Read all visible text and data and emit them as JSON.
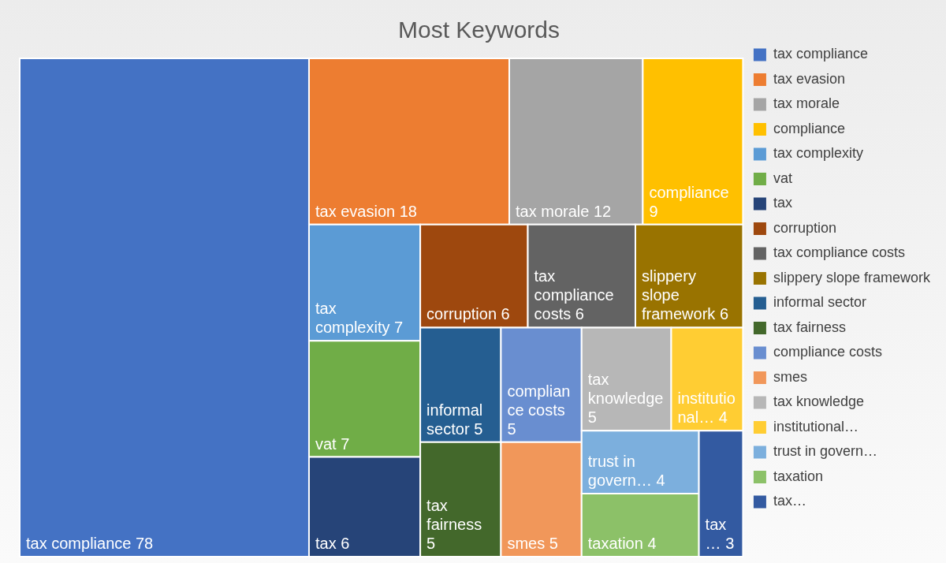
{
  "chart_data": {
    "type": "other",
    "title": "Most Keywords",
    "data_labels": true,
    "categories": [
      "tax compliance",
      "tax evasion",
      "tax morale",
      "compliance",
      "tax complexity",
      "vat",
      "tax",
      "corruption",
      "tax compliance costs",
      "slippery slope framework",
      "informal sector",
      "tax fairness",
      "compliance costs",
      "smes",
      "tax knowledge",
      "institutional…",
      "trust in govern…",
      "taxation",
      "tax…"
    ],
    "values": [
      78,
      18,
      12,
      9,
      7,
      7,
      6,
      6,
      6,
      6,
      5,
      5,
      5,
      5,
      5,
      4,
      4,
      4,
      3
    ],
    "colors": [
      "#4472c4",
      "#ed7d31",
      "#a5a5a5",
      "#ffc000",
      "#5b9bd5",
      "#70ad47",
      "#264478",
      "#9e480e",
      "#636363",
      "#997300",
      "#255e91",
      "#43682b",
      "#698ed0",
      "#f1975a",
      "#b7b7b7",
      "#ffcd33",
      "#7cafdd",
      "#8cc168",
      "#335aa1"
    ]
  }
}
